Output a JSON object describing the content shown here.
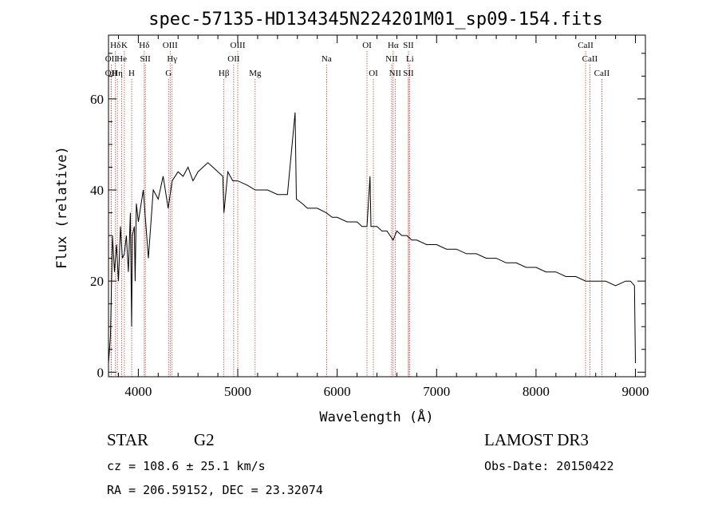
{
  "chart_data": {
    "type": "line",
    "title": "spec-57135-HD134345N224201M01_sp09-154.fits",
    "xlabel": "Wavelength (Å)",
    "ylabel": "Flux (relative)",
    "xlim": [
      3700,
      9100
    ],
    "ylim": [
      -1,
      74
    ],
    "x_ticks": [
      "4000",
      "5000",
      "6000",
      "7000",
      "8000",
      "9000"
    ],
    "x_tick_values": [
      4000,
      5000,
      6000,
      7000,
      8000,
      9000
    ],
    "y_ticks": [
      "0",
      "20",
      "40",
      "60"
    ],
    "y_tick_values": [
      0,
      20,
      40,
      60
    ],
    "series": [
      {
        "name": "flux",
        "x": [
          3700,
          3720,
          3740,
          3760,
          3780,
          3800,
          3820,
          3840,
          3860,
          3880,
          3900,
          3920,
          3933,
          3940,
          3960,
          3968,
          3980,
          4000,
          4050,
          4101,
          4150,
          4200,
          4250,
          4300,
          4340,
          4400,
          4450,
          4500,
          4550,
          4600,
          4650,
          4700,
          4750,
          4800,
          4850,
          4861,
          4900,
          4950,
          5000,
          5100,
          5175,
          5200,
          5300,
          5400,
          5500,
          5577,
          5590,
          5650,
          5700,
          5800,
          5890,
          5950,
          6000,
          6100,
          6200,
          6250,
          6300,
          6330,
          6340,
          6400,
          6450,
          6500,
          6563,
          6600,
          6650,
          6700,
          6750,
          6800,
          6900,
          7000,
          7100,
          7200,
          7300,
          7400,
          7500,
          7600,
          7700,
          7800,
          7900,
          8000,
          8100,
          8200,
          8300,
          8400,
          8500,
          8600,
          8700,
          8800,
          8900,
          8950,
          8990,
          9000
        ],
        "values": [
          2,
          8,
          30,
          22,
          28,
          20,
          32,
          25,
          26,
          30,
          22,
          35,
          10,
          30,
          32,
          20,
          37,
          33,
          40,
          25,
          40,
          38,
          43,
          36,
          42,
          44,
          43,
          45,
          42,
          44,
          45,
          46,
          45,
          44,
          43,
          35,
          44,
          42,
          42,
          41,
          40,
          40,
          40,
          39,
          39,
          57,
          38,
          37,
          36,
          36,
          35,
          34,
          34,
          33,
          33,
          32,
          32,
          43,
          32,
          32,
          31,
          31,
          29,
          31,
          30,
          30,
          29,
          29,
          28,
          28,
          27,
          27,
          26,
          26,
          25,
          25,
          24,
          24,
          23,
          23,
          22,
          22,
          21,
          21,
          20,
          20,
          20,
          19,
          20,
          20,
          19,
          2
        ]
      }
    ],
    "lines": [
      {
        "label": "Hδ",
        "x": 3770,
        "row": 0
      },
      {
        "label": "K",
        "x": 3860,
        "row": 0
      },
      {
        "label": "Hδ",
        "x": 4060,
        "row": 0
      },
      {
        "label": "OIII",
        "x": 4320,
        "row": 0
      },
      {
        "label": "OIII",
        "x": 5000,
        "row": 0
      },
      {
        "label": "OI",
        "x": 6300,
        "row": 0
      },
      {
        "label": "Hα",
        "x": 6563,
        "row": 0
      },
      {
        "label": "SII",
        "x": 6717,
        "row": 0
      },
      {
        "label": "CaII",
        "x": 8498,
        "row": 0
      },
      {
        "label": "OII",
        "x": 3727,
        "row": 1
      },
      {
        "label": "He",
        "x": 3833,
        "row": 1
      },
      {
        "label": "SII",
        "x": 4070,
        "row": 1
      },
      {
        "label": "Hγ",
        "x": 4340,
        "row": 1
      },
      {
        "label": "OII",
        "x": 4959,
        "row": 1
      },
      {
        "label": "Na",
        "x": 5893,
        "row": 1
      },
      {
        "label": "NII",
        "x": 6548,
        "row": 1
      },
      {
        "label": "Li",
        "x": 6731,
        "row": 1
      },
      {
        "label": "CaII",
        "x": 8542,
        "row": 1
      },
      {
        "label": "OII",
        "x": 3726,
        "row": 2
      },
      {
        "label": "Hη",
        "x": 3789,
        "row": 2
      },
      {
        "label": "H",
        "x": 3933,
        "row": 2
      },
      {
        "label": "G",
        "x": 4304,
        "row": 2
      },
      {
        "label": "Hβ",
        "x": 4861,
        "row": 2
      },
      {
        "label": "Mg",
        "x": 5175,
        "row": 2
      },
      {
        "label": "OI",
        "x": 6364,
        "row": 2
      },
      {
        "label": "NII",
        "x": 6583,
        "row": 2
      },
      {
        "label": "SII",
        "x": 6717,
        "row": 2
      },
      {
        "label": "CaII",
        "x": 8662,
        "row": 2
      }
    ]
  },
  "info": {
    "object": "STAR",
    "subclass": "G2",
    "survey": "LAMOST DR3",
    "cz": "cz = 108.6 ± 25.1 km/s",
    "obs_date": "Obs-Date: 20150422",
    "coords": "RA = 206.59152, DEC =  23.32074"
  }
}
